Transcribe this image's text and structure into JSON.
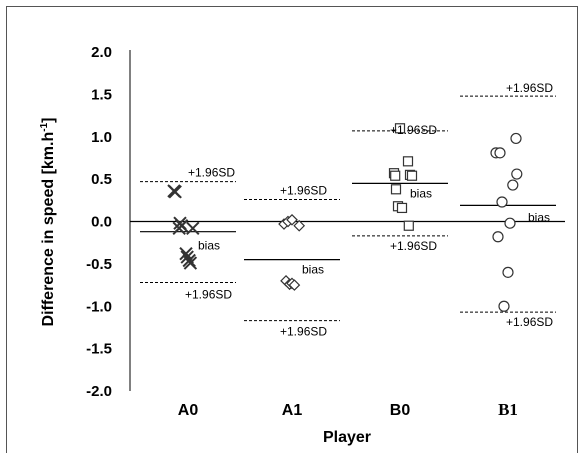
{
  "chart_data": {
    "type": "scatter",
    "title": "",
    "xlabel": "Player",
    "ylabel": "Difference in speed [km.h",
    "ylabel_sup": "-1",
    "ylabel_close": "]",
    "ylim": [
      -2.0,
      2.0
    ],
    "yticks": [
      2.0,
      1.5,
      1.0,
      0.5,
      0.0,
      -0.5,
      -1.0,
      -1.5,
      -2.0
    ],
    "ytick_labels": [
      "2.0",
      "1.5",
      "1.0",
      "0.5",
      "0.0",
      "-0.5",
      "-1.0",
      "-1.5",
      "-2.0"
    ],
    "categories": [
      "A0",
      "A1",
      "B0",
      "B1"
    ],
    "grid": false,
    "series": [
      {
        "category": "A0",
        "marker": "x",
        "bias": -0.12,
        "upper": 0.47,
        "lower": -0.72,
        "points": [
          {
            "x": -0.35,
            "y": 0.36
          },
          {
            "x": -0.32,
            "y": 0.35
          },
          {
            "x": -0.2,
            "y": -0.02
          },
          {
            "x": -0.16,
            "y": -0.05
          },
          {
            "x": -0.22,
            "y": -0.08
          },
          {
            "x": 0.12,
            "y": -0.08
          },
          {
            "x": -0.05,
            "y": -0.38
          },
          {
            "x": -0.02,
            "y": -0.42
          },
          {
            "x": 0.03,
            "y": -0.46
          },
          {
            "x": 0.06,
            "y": -0.49
          }
        ]
      },
      {
        "category": "A1",
        "marker": "diamond",
        "bias": -0.45,
        "upper": 0.26,
        "lower": -1.17,
        "points": [
          {
            "x": -0.2,
            "y": -0.03
          },
          {
            "x": -0.1,
            "y": 0.0
          },
          {
            "x": 0.0,
            "y": 0.02
          },
          {
            "x": 0.18,
            "y": -0.05
          },
          {
            "x": -0.15,
            "y": -0.7
          },
          {
            "x": -0.06,
            "y": -0.74
          },
          {
            "x": 0.0,
            "y": -0.73
          },
          {
            "x": 0.06,
            "y": -0.75
          }
        ]
      },
      {
        "category": "B0",
        "marker": "square",
        "bias": 0.45,
        "upper": 1.07,
        "lower": -0.17,
        "points": [
          {
            "x": 0.0,
            "y": 1.1
          },
          {
            "x": -0.15,
            "y": 0.57
          },
          {
            "x": -0.12,
            "y": 0.54
          },
          {
            "x": 0.2,
            "y": 0.71
          },
          {
            "x": 0.25,
            "y": 0.55
          },
          {
            "x": 0.3,
            "y": 0.54
          },
          {
            "x": -0.1,
            "y": 0.38
          },
          {
            "x": -0.05,
            "y": 0.18
          },
          {
            "x": 0.05,
            "y": 0.16
          },
          {
            "x": 0.22,
            "y": -0.05
          }
        ]
      },
      {
        "category": "B1",
        "marker": "circle",
        "bias": 0.19,
        "upper": 1.48,
        "lower": -1.07,
        "points": [
          {
            "x": -0.3,
            "y": 0.81
          },
          {
            "x": -0.2,
            "y": 0.81
          },
          {
            "x": 0.2,
            "y": 0.98
          },
          {
            "x": 0.22,
            "y": 0.56
          },
          {
            "x": 0.12,
            "y": 0.43
          },
          {
            "x": -0.15,
            "y": 0.23
          },
          {
            "x": 0.05,
            "y": -0.02
          },
          {
            "x": -0.25,
            "y": -0.18
          },
          {
            "x": 0.0,
            "y": -0.6
          },
          {
            "x": -0.1,
            "y": -1.0
          }
        ]
      }
    ],
    "annotations": {
      "sd_label": "+1.96SD",
      "bias_label": "bias"
    }
  }
}
